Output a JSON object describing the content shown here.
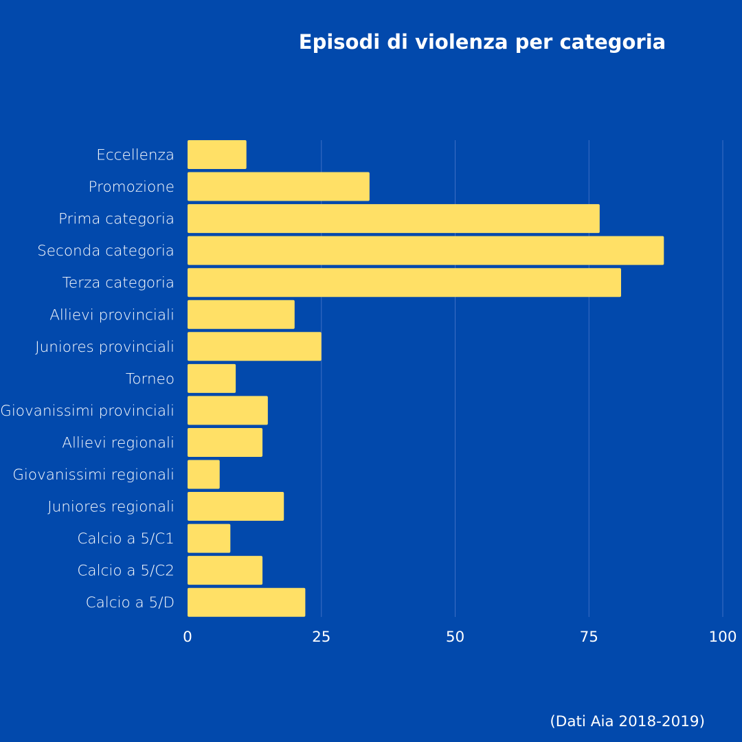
{
  "chart_data": {
    "type": "bar",
    "orientation": "horizontal",
    "title": "Episodi di violenza per categoria",
    "categories": [
      "Eccellenza",
      "Promozione",
      "Prima categoria",
      "Seconda categoria",
      "Terza categoria",
      "Allievi provinciali",
      "Juniores provinciali",
      "Torneo",
      "Giovanissimi provinciali",
      "Allievi regionali",
      "Giovanissimi regionali",
      "Juniores regionali",
      "Calcio a 5/C1",
      "Calcio a 5/C2",
      "Calcio a 5/D"
    ],
    "values": [
      11,
      34,
      77,
      89,
      81,
      20,
      25,
      9,
      15,
      14,
      6,
      18,
      8,
      14,
      22
    ],
    "xlim": [
      0,
      100
    ],
    "xticks": [
      0,
      25,
      50,
      75,
      100
    ],
    "grid": true,
    "source": "(Dati Aia 2018-2019)"
  },
  "colors": {
    "background": "#0249AC",
    "bar": "#FFE066",
    "gridline": "#3D6FC4",
    "text": "#FFFFFF"
  }
}
